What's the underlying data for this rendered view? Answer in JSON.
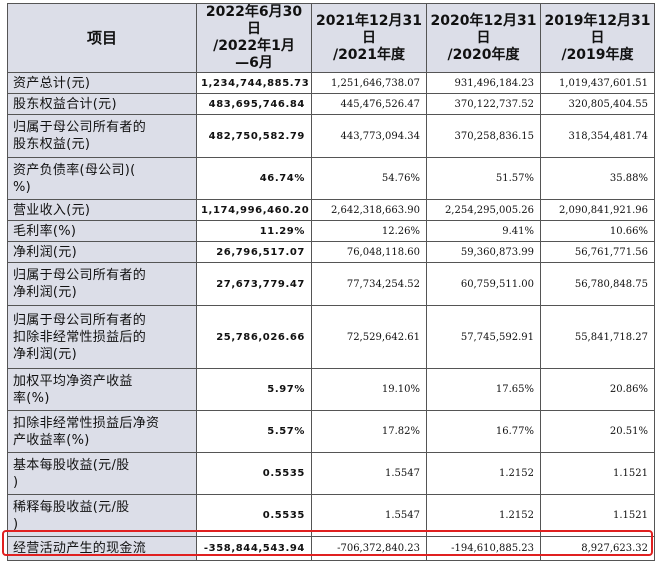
{
  "table": {
    "headers": [
      "项目",
      "2022年6月30日/2022年1月—6月",
      "2021年12月31日/2021年度",
      "2020年12月31日/2020年度",
      "2019年12月31日/2019年度"
    ],
    "rows": [
      {
        "label": "资产总计(元)",
        "values": [
          "1,234,744,885.73",
          "1,251,646,738.07",
          "931,496,184.23",
          "1,019,437,601.51"
        ]
      },
      {
        "label": "股东权益合计(元)",
        "values": [
          "483,695,746.84",
          "445,476,526.47",
          "370,122,737.52",
          "320,805,404.55"
        ]
      },
      {
        "label": "归属于母公司所有者的股东权益(元)",
        "values": [
          "482,750,582.79",
          "443,773,094.34",
          "370,258,836.15",
          "318,354,481.74"
        ]
      },
      {
        "label": "资产负债率(母公司)(%)",
        "values": [
          "46.74%",
          "54.76%",
          "51.57%",
          "35.88%"
        ]
      },
      {
        "label": "营业收入(元)",
        "values": [
          "1,174,996,460.20",
          "2,642,318,663.90",
          "2,254,295,005.26",
          "2,090,841,921.96"
        ]
      },
      {
        "label": "毛利率(%)",
        "values": [
          "11.29%",
          "12.26%",
          "9.41%",
          "10.66%"
        ]
      },
      {
        "label": "净利润(元)",
        "values": [
          "26,796,517.07",
          "76,048,118.60",
          "59,360,873.99",
          "56,761,771.56"
        ]
      },
      {
        "label": "归属于母公司所有者的净利润(元)",
        "values": [
          "27,673,779.47",
          "77,734,254.52",
          "60,759,511.00",
          "56,780,848.75"
        ]
      },
      {
        "label": "归属于母公司所有者的扣除非经常性损益后的净利润(元)",
        "values": [
          "25,786,026.66",
          "72,529,642.61",
          "57,745,592.91",
          "55,841,718.27"
        ]
      },
      {
        "label": "加权平均净资产收益率(%)",
        "values": [
          "5.97%",
          "19.10%",
          "17.65%",
          "20.86%"
        ]
      },
      {
        "label": "扣除非经常性损益后净资产收益率(%)",
        "values": [
          "5.57%",
          "17.82%",
          "16.77%",
          "20.51%"
        ]
      },
      {
        "label": "基本每股收益(元/股)",
        "values": [
          "0.5535",
          "1.5547",
          "1.2152",
          "1.1521"
        ]
      },
      {
        "label": "稀释每股收益(元/股)",
        "values": [
          "0.5535",
          "1.5547",
          "1.2152",
          "1.1521"
        ]
      },
      {
        "label": "经营活动产生的现金流",
        "values": [
          "-358,844,543.94",
          "-706,372,840.23",
          "-194,610,885.23",
          "8,927,623.32"
        ]
      }
    ]
  },
  "colors": {
    "header_bg": "#dcdee8",
    "border": "#555555",
    "highlight": "#e02020"
  }
}
